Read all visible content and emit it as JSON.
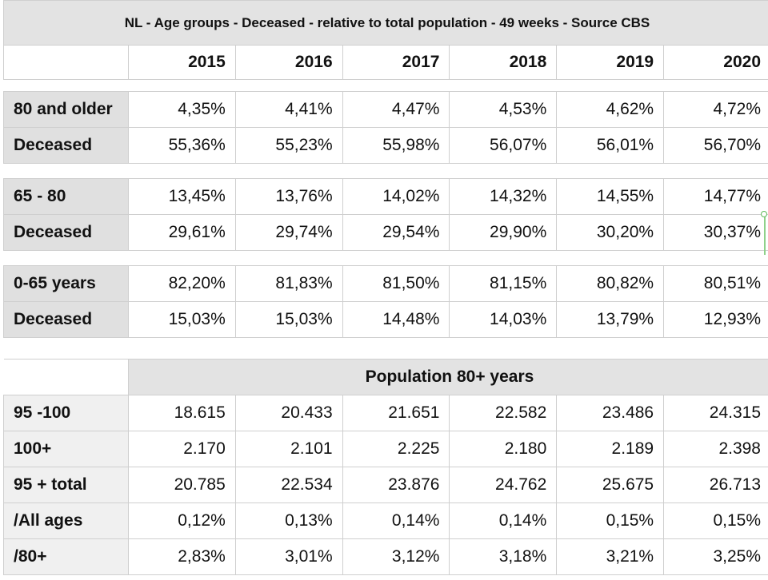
{
  "title": "NL - Age groups - Deceased - relative to total population - 49 weeks - Source CBS",
  "years": [
    "2015",
    "2016",
    "2017",
    "2018",
    "2019",
    "2020"
  ],
  "groups": [
    {
      "rows": [
        {
          "label": "80 and older",
          "values": [
            "4,35%",
            "4,41%",
            "4,47%",
            "4,53%",
            "4,62%",
            "4,72%"
          ]
        },
        {
          "label": "Deceased",
          "values": [
            "55,36%",
            "55,23%",
            "55,98%",
            "56,07%",
            "56,01%",
            "56,70%"
          ]
        }
      ]
    },
    {
      "rows": [
        {
          "label": "65 - 80",
          "values": [
            "13,45%",
            "13,76%",
            "14,02%",
            "14,32%",
            "14,55%",
            "14,77%"
          ]
        },
        {
          "label": "Deceased",
          "values": [
            "29,61%",
            "29,74%",
            "29,54%",
            "29,90%",
            "30,20%",
            "30,37%"
          ]
        }
      ]
    },
    {
      "rows": [
        {
          "label": "0-65 years",
          "values": [
            "82,20%",
            "81,83%",
            "81,50%",
            "81,15%",
            "80,82%",
            "80,51%"
          ]
        },
        {
          "label": "Deceased",
          "values": [
            "15,03%",
            "15,03%",
            "14,48%",
            "14,03%",
            "13,79%",
            "12,93%"
          ]
        }
      ]
    }
  ],
  "population_header": "Population 80+ years",
  "population_rows": [
    {
      "label": "95 -100",
      "values": [
        "18.615",
        "20.433",
        "21.651",
        "22.582",
        "23.486",
        "24.315"
      ]
    },
    {
      "label": "100+",
      "values": [
        "2.170",
        "2.101",
        "2.225",
        "2.180",
        "2.189",
        "2.398"
      ]
    },
    {
      "label": "95 + total",
      "values": [
        "20.785",
        "22.534",
        "23.876",
        "24.762",
        "25.675",
        "26.713"
      ]
    },
    {
      "label": "/All ages",
      "values": [
        "0,12%",
        "0,13%",
        "0,14%",
        "0,14%",
        "0,15%",
        "0,15%"
      ]
    },
    {
      "label": "/80+",
      "values": [
        "2,83%",
        "3,01%",
        "3,12%",
        "3,18%",
        "3,21%",
        "3,25%"
      ]
    }
  ]
}
